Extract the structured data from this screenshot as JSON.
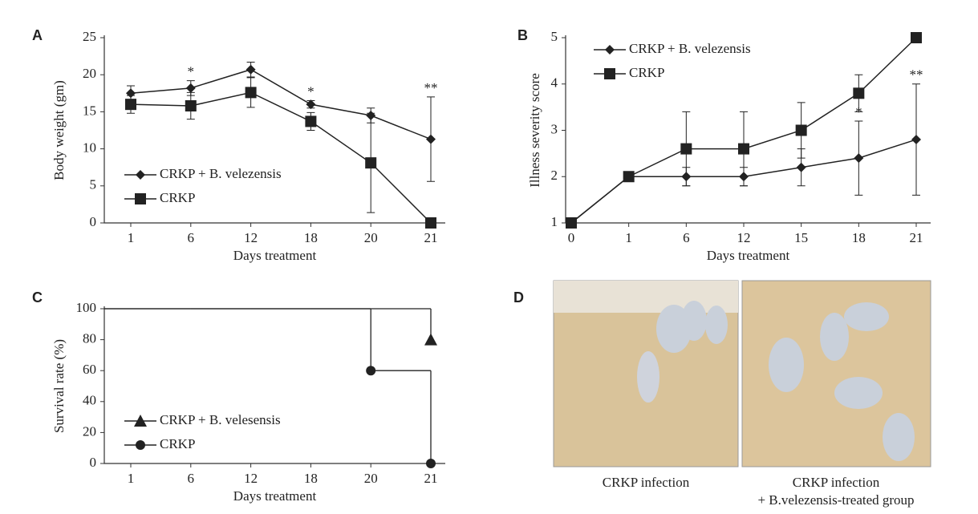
{
  "chart_data": [
    {
      "type": "line",
      "panel": "A",
      "x_label": "Days treatment",
      "y_label": "Body weight (gm)",
      "categories": [
        "1",
        "6",
        "12",
        "18",
        "20",
        "21"
      ],
      "ylim": [
        0,
        25
      ],
      "yticks": [
        0,
        5,
        10,
        15,
        20,
        25
      ],
      "series": [
        {
          "name": "CRKP + B. velezensis",
          "color": "#222",
          "marker": "diamond",
          "values": [
            17.5,
            18.2,
            20.7,
            16,
            14.5,
            11.3
          ],
          "error": [
            1,
            1,
            1,
            0.5,
            1,
            5.7
          ]
        },
        {
          "name": "CRKP",
          "color": "#222",
          "marker": "square",
          "values": [
            16,
            15.8,
            17.6,
            13.7,
            8.1,
            0
          ],
          "error": [
            1.2,
            1.8,
            2,
            1.2,
            6.7,
            0
          ]
        }
      ],
      "annotations": [
        {
          "text": "*",
          "x": "6"
        },
        {
          "text": "*",
          "x": "18"
        },
        {
          "text": "**",
          "x": "21"
        }
      ]
    },
    {
      "type": "line",
      "panel": "B",
      "x_label": "Days treatment",
      "y_label": "Illness severity score",
      "categories": [
        "0",
        "1",
        "6",
        "12",
        "15",
        "18",
        "21"
      ],
      "ylim": [
        1,
        5
      ],
      "yticks": [
        1,
        2,
        3,
        4,
        5
      ],
      "series": [
        {
          "name": "CRKP + B. velezensis",
          "color": "#222",
          "marker": "diamond",
          "values": [
            1,
            2,
            2,
            2,
            2.2,
            2.4,
            2.8
          ],
          "error": [
            0,
            0.1,
            0.2,
            0.2,
            0.4,
            0.8,
            1.2
          ]
        },
        {
          "name": "CRKP",
          "color": "#222",
          "marker": "square",
          "values": [
            1,
            2,
            2.6,
            2.6,
            3,
            3.8,
            5
          ],
          "error": [
            0,
            0.1,
            0.8,
            0.8,
            0.6,
            0.4,
            0
          ]
        }
      ],
      "annotations": [
        {
          "text": "*",
          "x": "18"
        },
        {
          "text": "**",
          "x": "21"
        }
      ]
    },
    {
      "type": "step",
      "panel": "C",
      "x_label": "Days treatment",
      "y_label": "Survival rate (%)",
      "categories": [
        "1",
        "6",
        "12",
        "18",
        "20",
        "21"
      ],
      "ylim": [
        0,
        100
      ],
      "yticks": [
        0,
        20,
        40,
        60,
        80,
        100
      ],
      "series": [
        {
          "name": "CRKP + B. velesensis",
          "color": "#222",
          "marker": "triangle",
          "values": [
            100,
            100,
            100,
            100,
            100,
            80
          ]
        },
        {
          "name": "CRKP",
          "color": "#222",
          "marker": "circle",
          "values": [
            100,
            100,
            100,
            100,
            60,
            0
          ]
        }
      ]
    }
  ],
  "panel_d": {
    "label": "D",
    "captions": [
      [
        "CRKP infection"
      ],
      [
        "CRKP infection",
        "+ B.velezensis-treated group"
      ]
    ]
  }
}
